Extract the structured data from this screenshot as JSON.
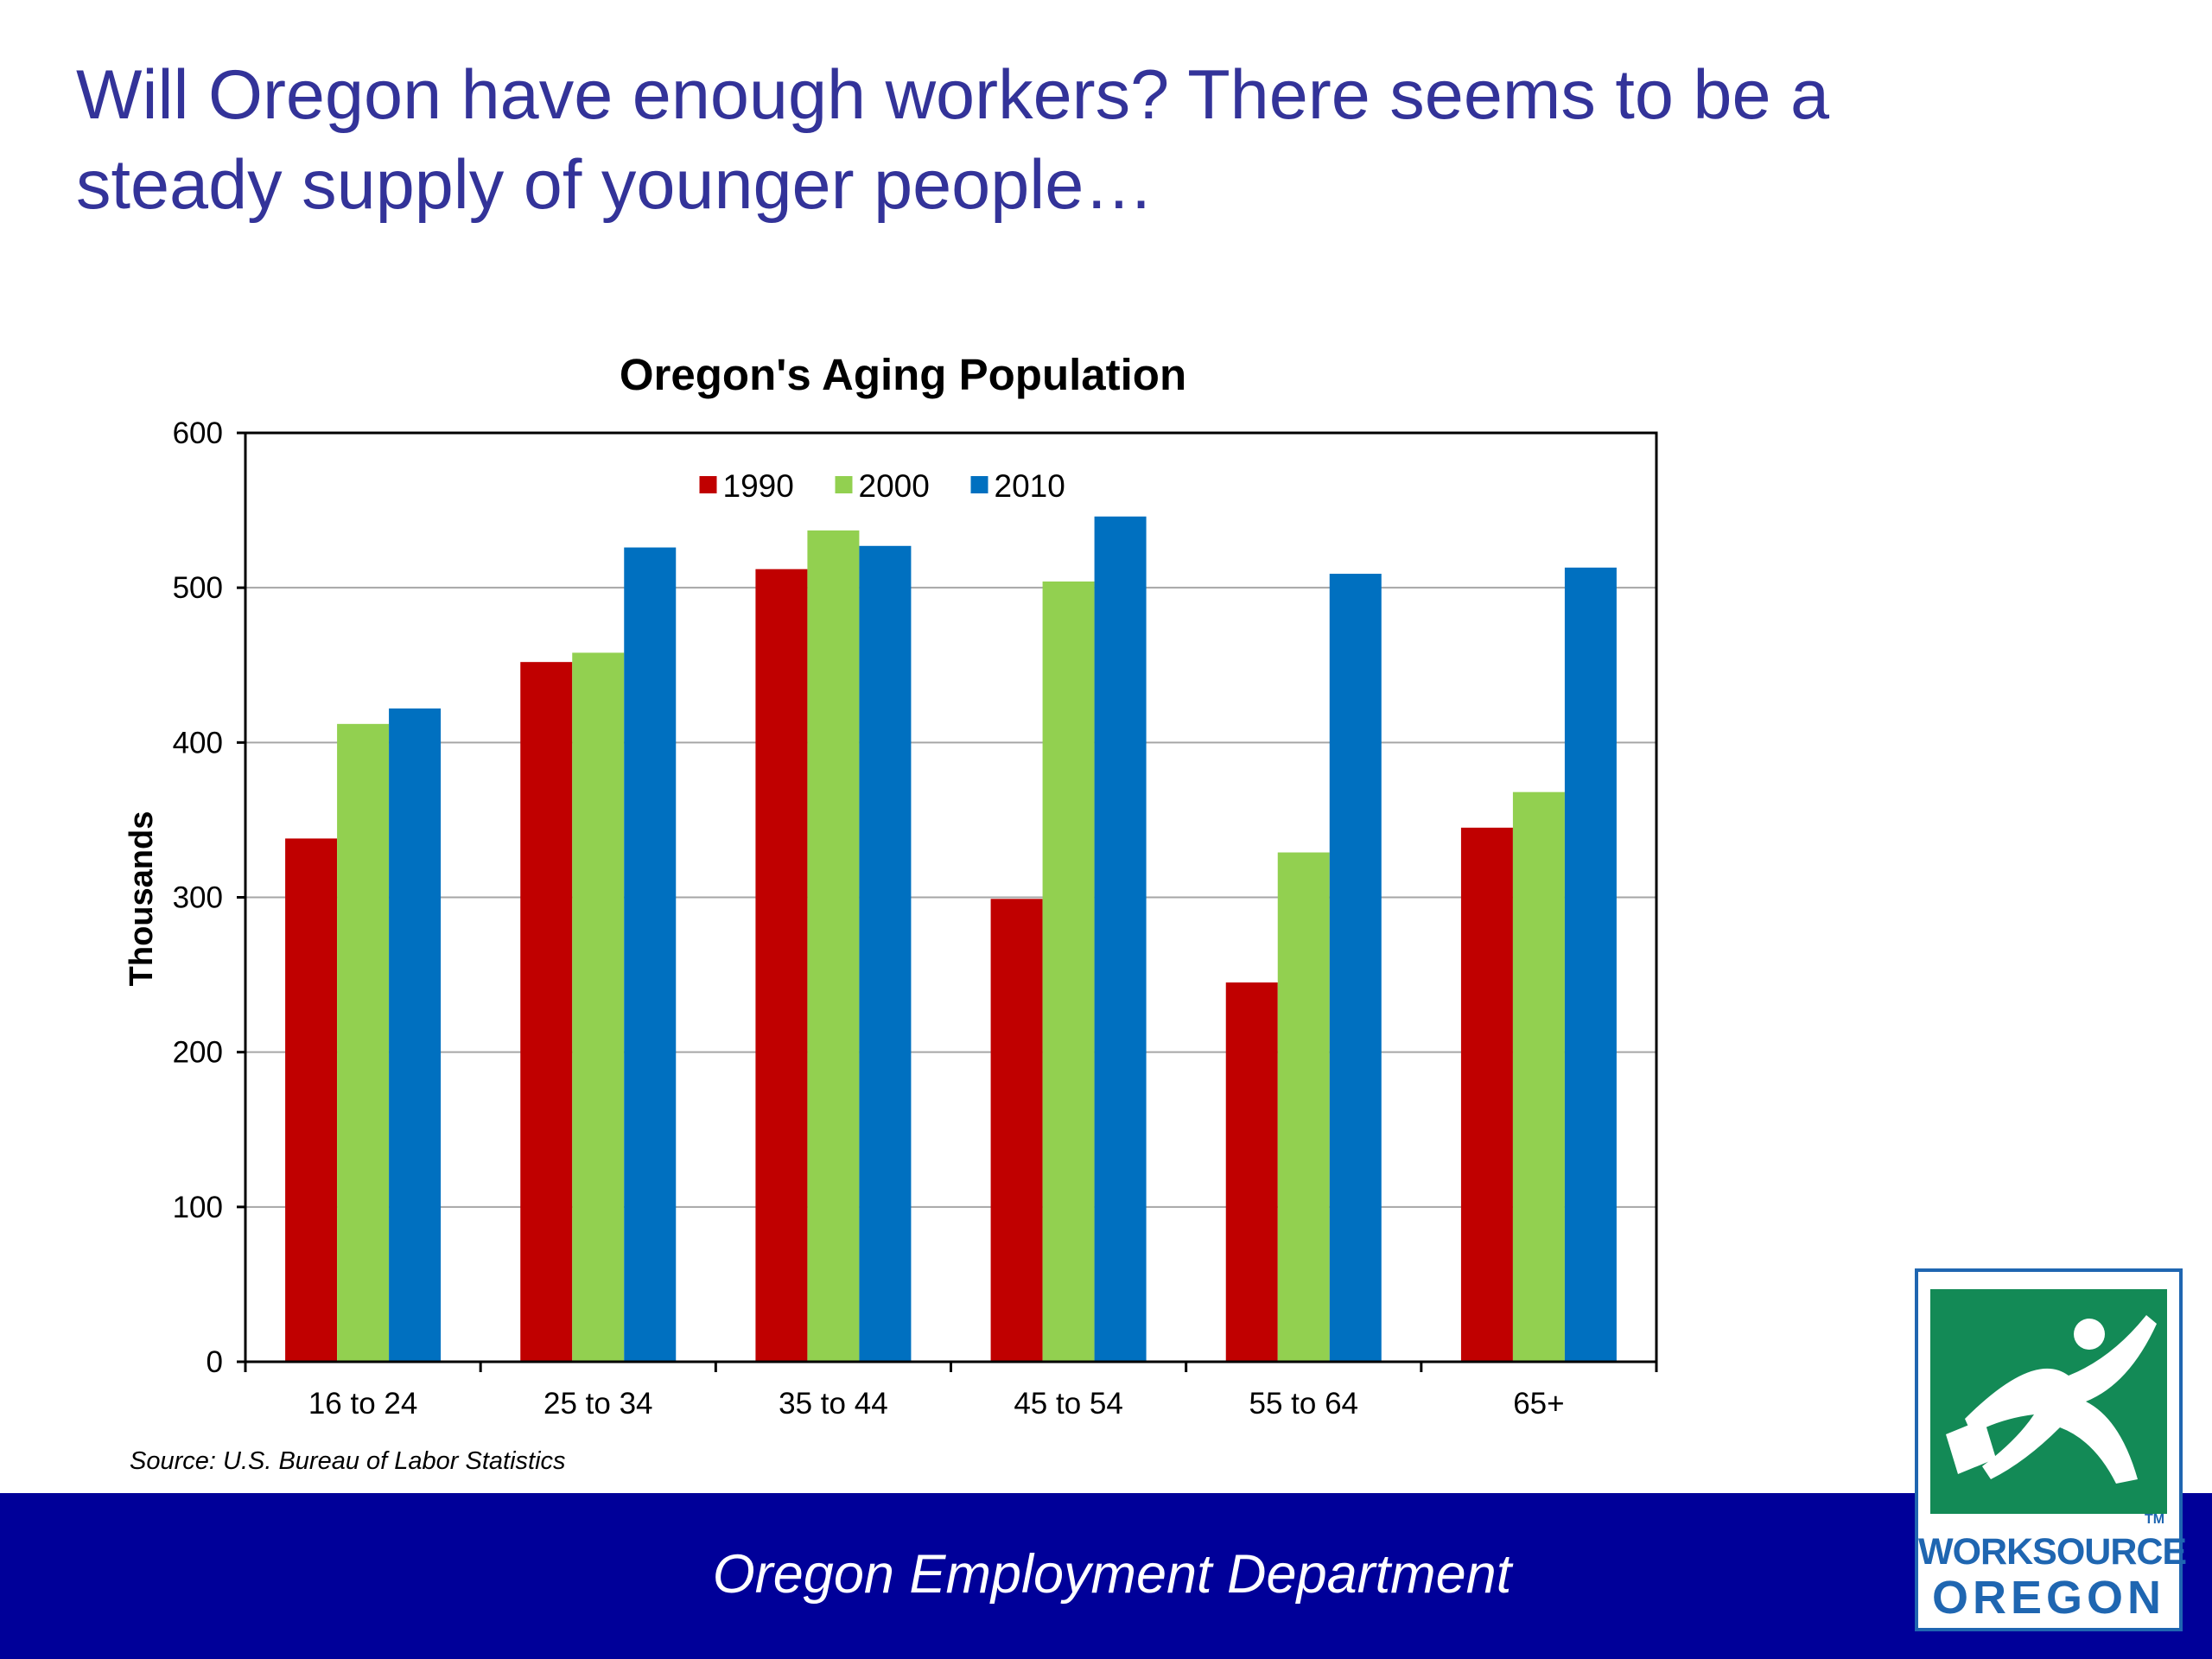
{
  "slide": {
    "title_line1": "Will Oregon have enough workers? There seems to be a",
    "title_line2": "steady supply of younger people…",
    "footer": "Oregon Employment Department",
    "logo_line1": "WORKSOURCE",
    "logo_line2": "OREGON",
    "logo_tm": "TM"
  },
  "colors": {
    "title": "#333399",
    "footer_bar": "#000099",
    "series_1990": "#c00000",
    "series_2000": "#92d050",
    "series_2010": "#0070c0",
    "logo_green": "#138a56",
    "logo_blue": "#1f66b1"
  },
  "icons": {
    "logo": "worksource-oregon-logo-icon"
  },
  "chart_data": {
    "type": "bar",
    "title": "Oregon's Aging Population",
    "ylabel": "Thousands",
    "xlabel": "",
    "ylim": [
      0,
      600
    ],
    "yticks": [
      0,
      100,
      200,
      300,
      400,
      500,
      600
    ],
    "grid": true,
    "legend_position": "top-center",
    "categories": [
      "16 to 24",
      "25 to 34",
      "35 to 44",
      "45 to 54",
      "55 to 64",
      "65+"
    ],
    "series": [
      {
        "name": "1990",
        "color": "#c00000",
        "values": [
          338,
          452,
          512,
          299,
          245,
          345
        ]
      },
      {
        "name": "2000",
        "color": "#92d050",
        "values": [
          412,
          458,
          537,
          504,
          329,
          368
        ]
      },
      {
        "name": "2010",
        "color": "#0070c0",
        "values": [
          422,
          526,
          527,
          546,
          509,
          513
        ]
      }
    ],
    "source": "Source: U.S. Bureau of Labor Statistics"
  }
}
